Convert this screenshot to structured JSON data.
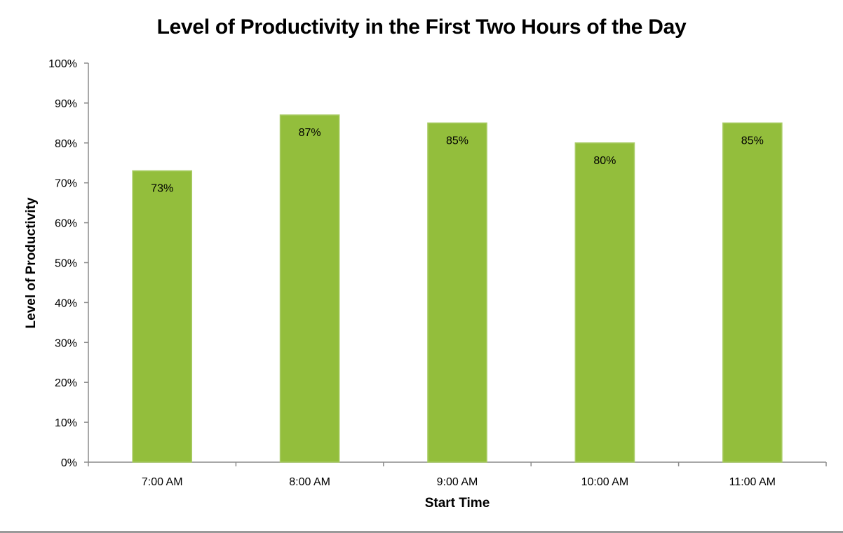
{
  "chart_data": {
    "type": "bar",
    "title": "Level of Productivity in the First Two Hours of the Day",
    "xlabel": "Start Time",
    "ylabel": "Level of Productivity",
    "categories": [
      "7:00 AM",
      "8:00 AM",
      "9:00 AM",
      "10:00 AM",
      "11:00 AM"
    ],
    "values": [
      73,
      87,
      85,
      80,
      85
    ],
    "data_labels": [
      "73%",
      "87%",
      "85%",
      "80%",
      "85%"
    ],
    "y_ticks": [
      0,
      10,
      20,
      30,
      40,
      50,
      60,
      70,
      80,
      90,
      100
    ],
    "y_tick_labels": [
      "0%",
      "10%",
      "20%",
      "30%",
      "40%",
      "50%",
      "60%",
      "70%",
      "80%",
      "90%",
      "100%"
    ],
    "ylim": [
      0,
      100
    ],
    "grid": false,
    "legend": "none",
    "bar_color": "#93BE3C",
    "bar_edge_color": "#A9CC66",
    "axis_color": "#8C8C8C"
  }
}
